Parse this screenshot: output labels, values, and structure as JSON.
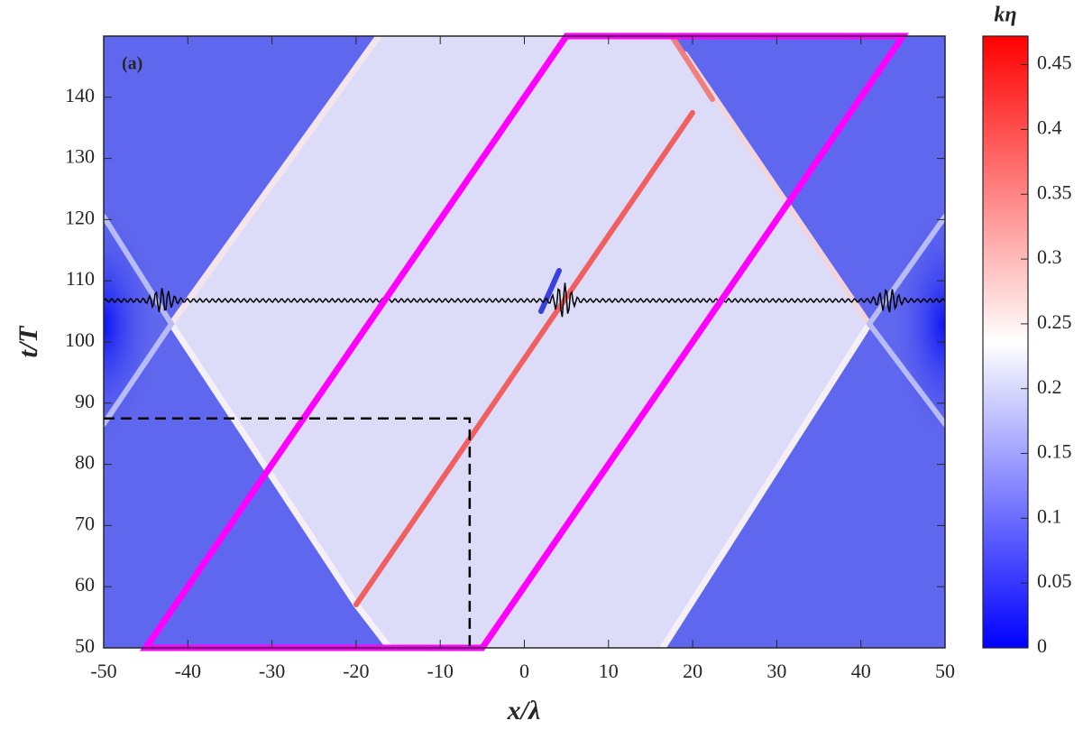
{
  "chart_data": {
    "type": "heatmap",
    "panel_label": "(a)",
    "xlabel": "x/λ",
    "ylabel": "t/T",
    "colorbar_label": "kη",
    "xlim": [
      -50,
      50
    ],
    "xticks": [
      -50,
      -40,
      -30,
      -20,
      -10,
      0,
      10,
      20,
      30,
      40,
      50
    ],
    "ylim": [
      50,
      150
    ],
    "yticks": [
      50,
      60,
      70,
      80,
      90,
      100,
      110,
      120,
      130,
      140
    ],
    "clim": [
      0,
      0.472
    ],
    "cticks": [
      0,
      0.05,
      0.1,
      0.15,
      0.2,
      0.25,
      0.3,
      0.35,
      0.4,
      0.45
    ],
    "colormap": [
      "#0000ff",
      "#ffffff",
      "#ff0000"
    ],
    "overlays": [
      {
        "style": "solid",
        "color": "#ff00ff",
        "x": [
          -45,
          -5,
          45,
          5
        ],
        "y": [
          50,
          50,
          150,
          150
        ]
      },
      {
        "style": "dashed",
        "color": "#000000",
        "x": [
          -50,
          -6.5,
          -6.5
        ],
        "y": [
          87.5,
          87.5,
          50
        ]
      }
    ]
  }
}
